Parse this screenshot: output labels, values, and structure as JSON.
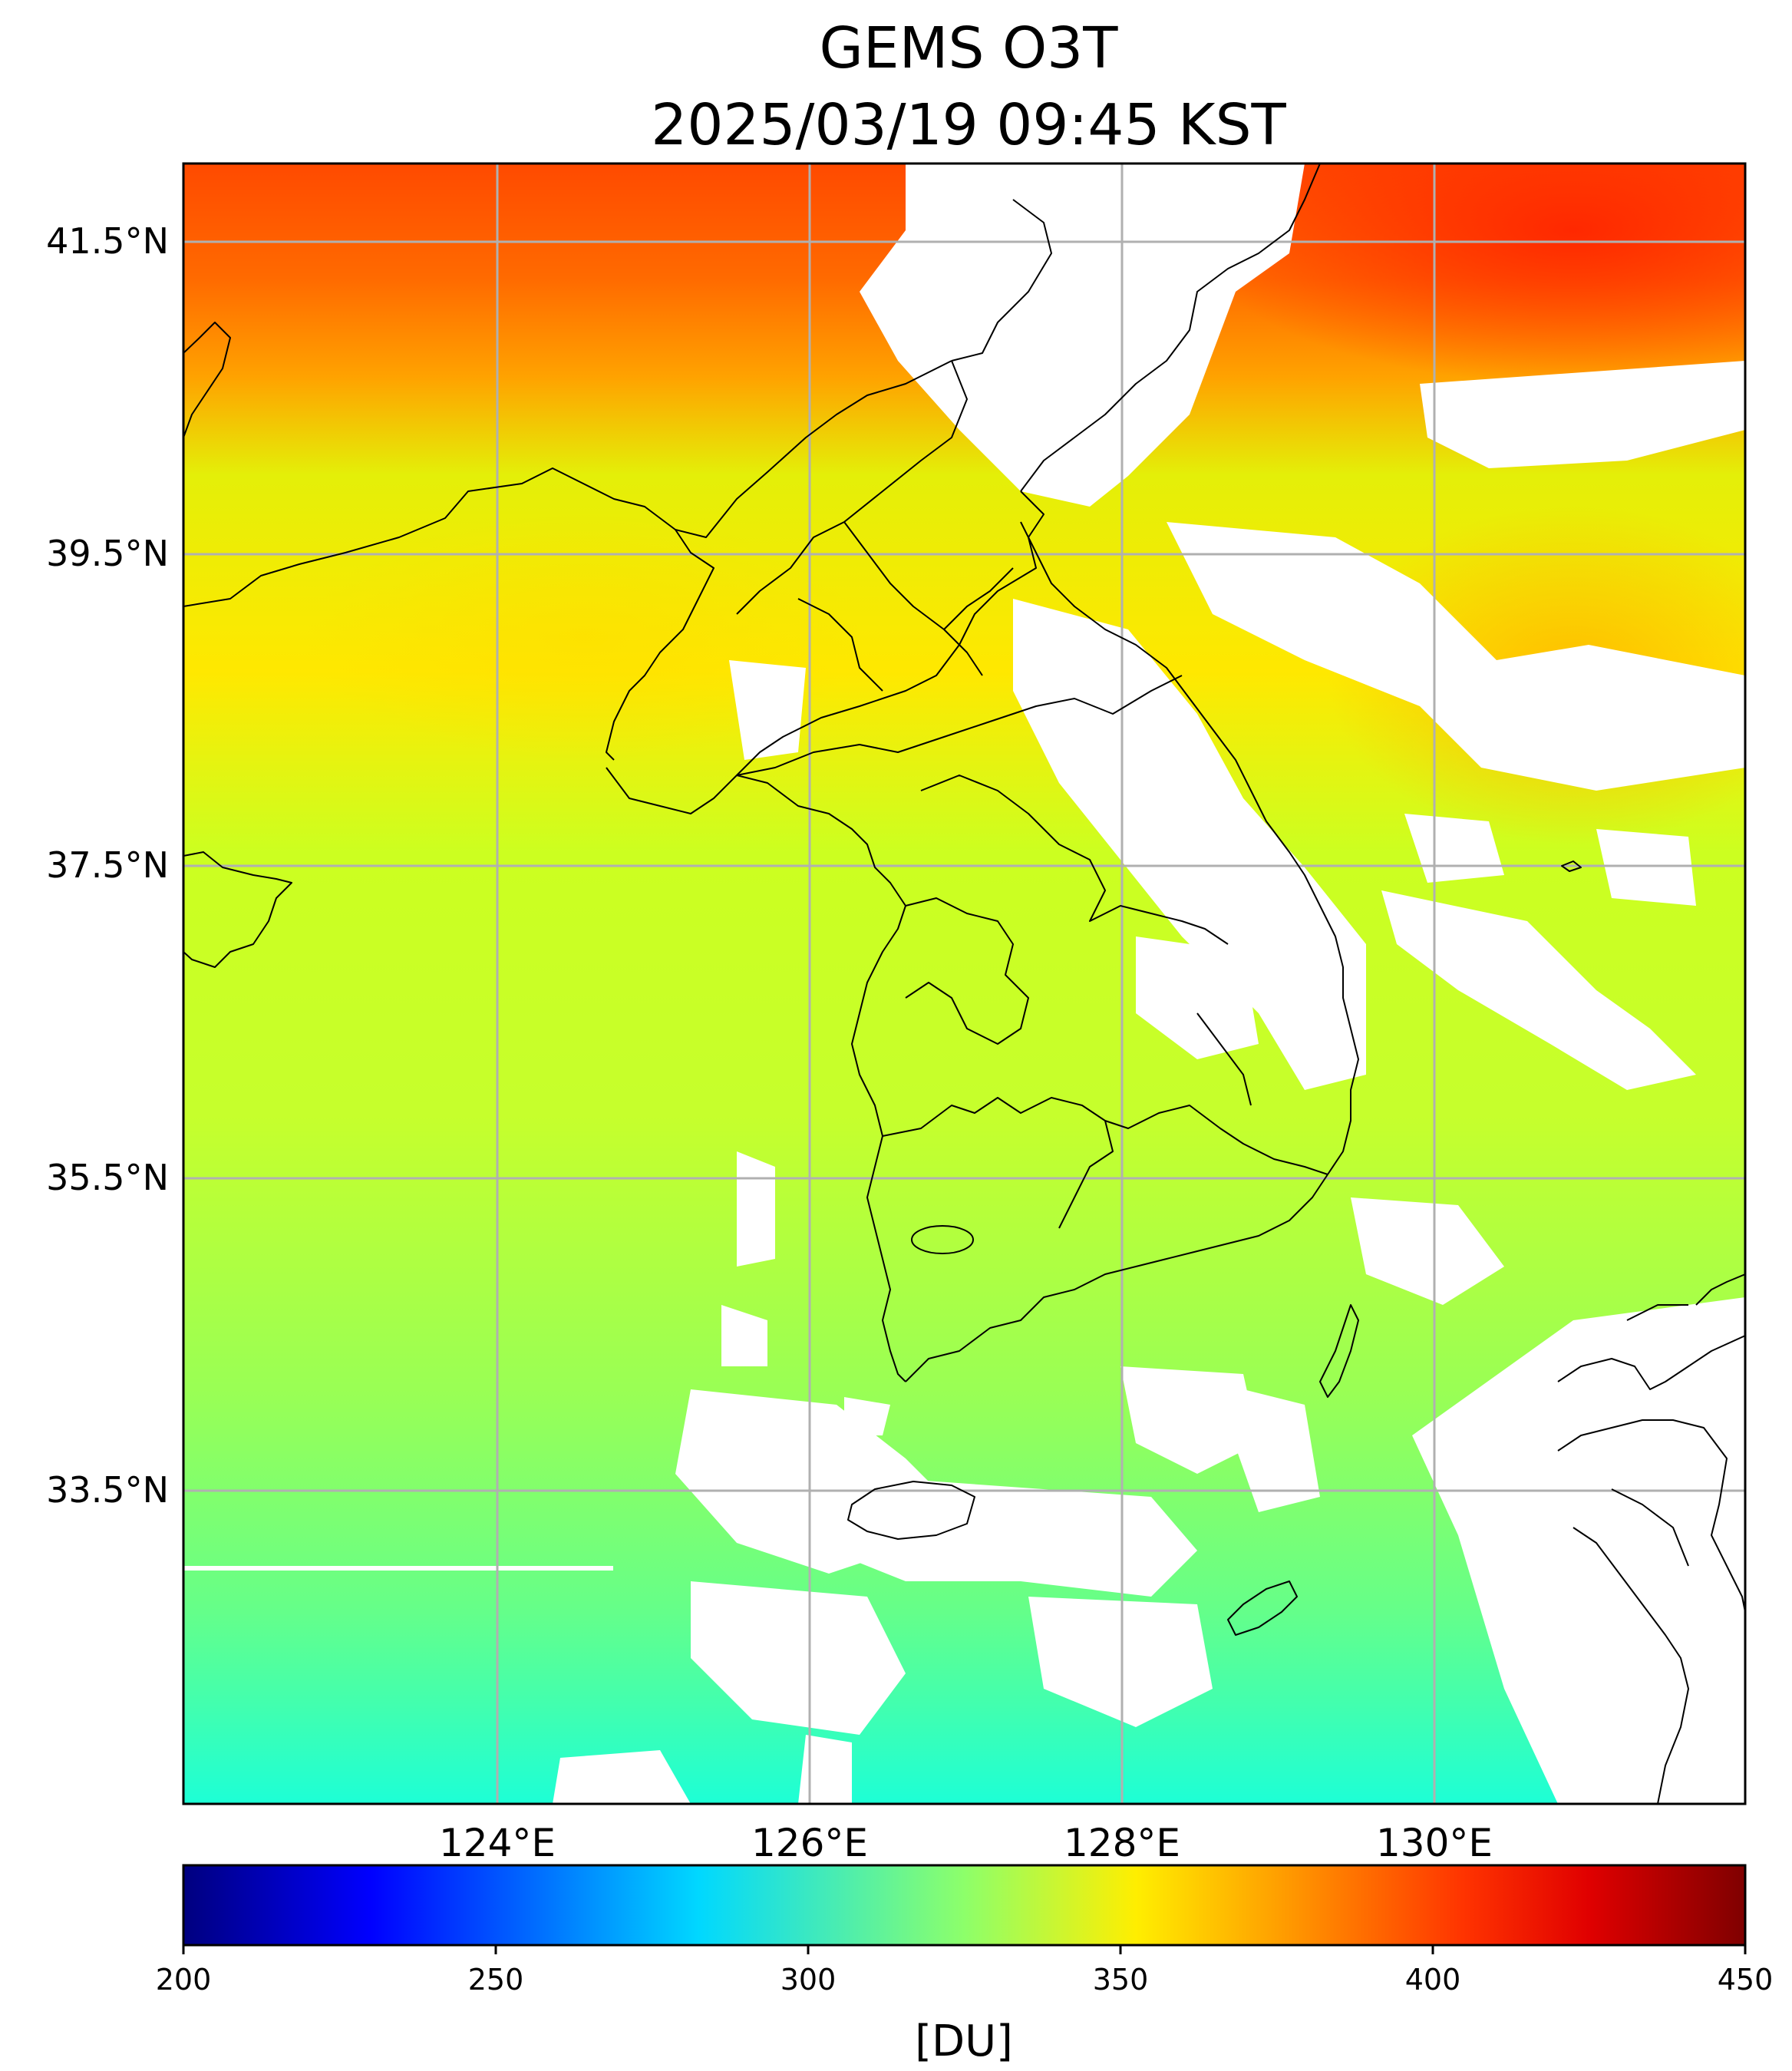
{
  "map": {
    "title_line1": "GEMS O3T",
    "title_line2": "2025/03/19 09:45 KST",
    "lat_ticks": [
      "41.5°N",
      "39.5°N",
      "37.5°N",
      "35.5°N",
      "33.5°N"
    ],
    "lon_ticks": [
      "124°E",
      "126°E",
      "128°E",
      "130°E"
    ]
  },
  "colorbar": {
    "label": "[DU]",
    "ticks": [
      "200",
      "250",
      "300",
      "350",
      "400",
      "450"
    ],
    "min": 200,
    "max": 450,
    "colormap": "jet"
  },
  "colors": {
    "grid": "#b0b0b0",
    "coast": "#000000",
    "nodata": "#ffffff"
  }
}
